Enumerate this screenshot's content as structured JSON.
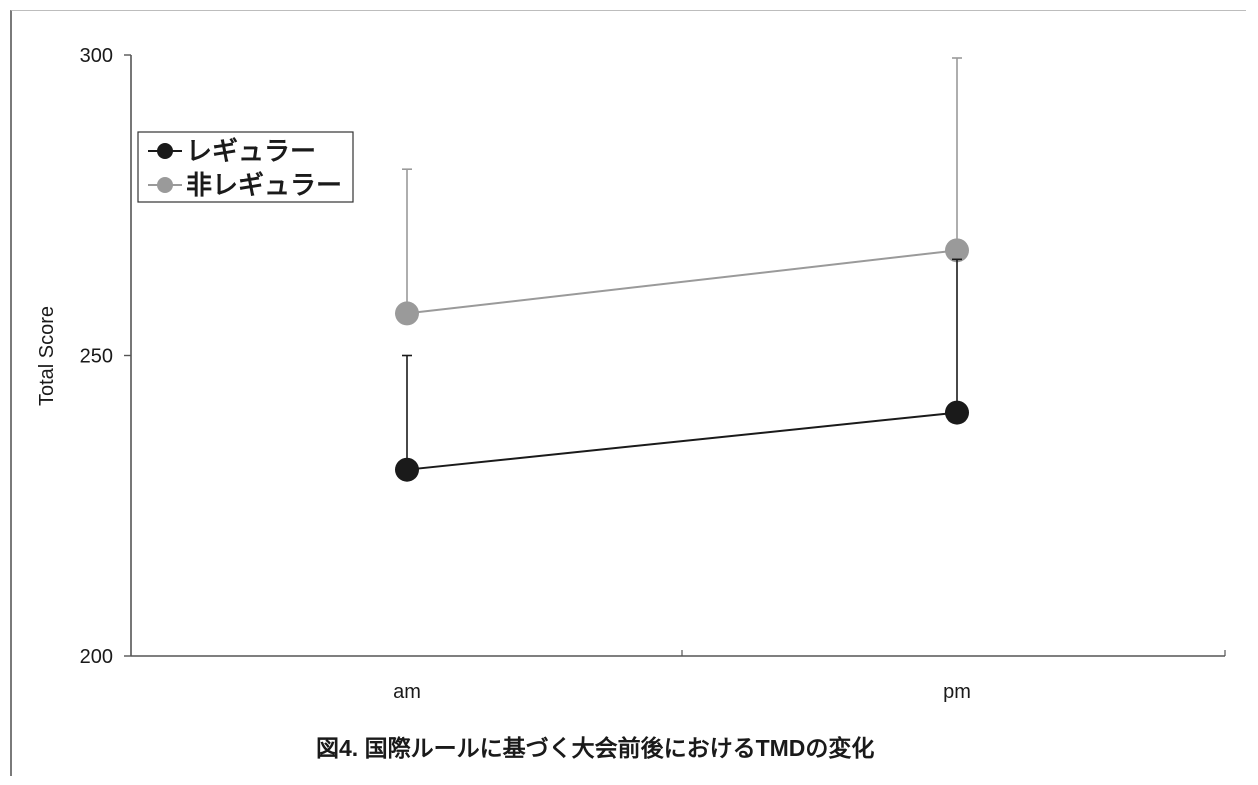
{
  "chart_data": {
    "type": "line",
    "categories": [
      "am",
      "pm"
    ],
    "ylabel": "Total Score",
    "ylim": [
      200,
      300
    ],
    "yticks": [
      200,
      250,
      300
    ],
    "grid": false,
    "legend_position": "top-left",
    "caption": "図4. 国際ルールに基づく大会前後におけるTMDの変化",
    "series": [
      {
        "name": "レギュラー",
        "color": "#1a1a1a",
        "values": [
          231,
          240.5
        ],
        "error_upper": [
          250,
          266
        ]
      },
      {
        "name": "非レギュラー",
        "color": "#9a9a9a",
        "values": [
          257,
          267.5
        ],
        "error_upper": [
          281,
          299.5
        ]
      }
    ]
  }
}
